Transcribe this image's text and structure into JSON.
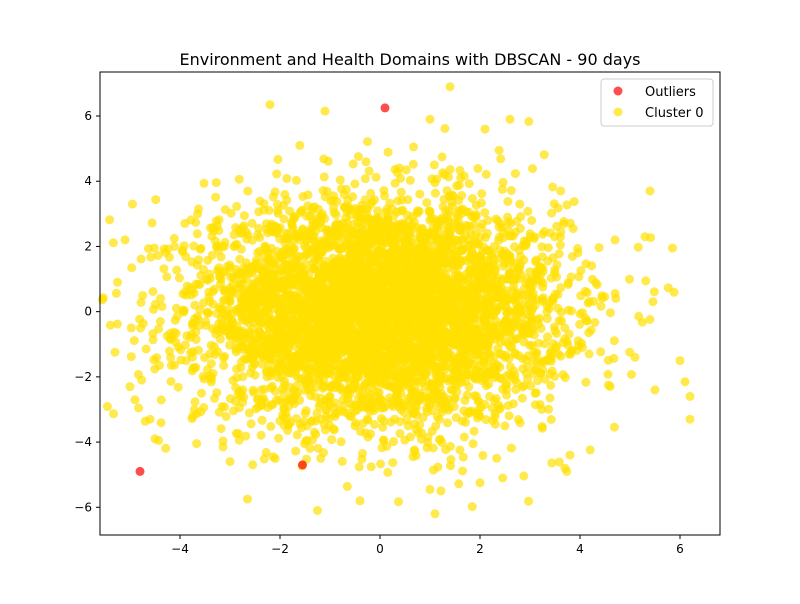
{
  "chart_data": {
    "type": "scatter",
    "title": "Environment and Health Domains with DBSCAN - 90 days",
    "xlabel": "",
    "ylabel": "",
    "xlim": [
      -5.6,
      6.8
    ],
    "ylim": [
      -6.85,
      7.35
    ],
    "x_ticks": [
      -4,
      -2,
      0,
      2,
      4,
      6
    ],
    "y_ticks": [
      -6,
      -4,
      -2,
      0,
      2,
      4,
      6
    ],
    "grid": false,
    "legend_position": "top-right",
    "series": [
      {
        "name": "Outliers",
        "color": "#ff0000",
        "points": [
          [
            0.1,
            6.25
          ],
          [
            -4.8,
            -4.9
          ],
          [
            -1.55,
            -4.7
          ]
        ]
      },
      {
        "name": "Cluster 0",
        "color": "#ffe000",
        "point_count": 5000,
        "center": [
          0.0,
          0.0
        ],
        "spread": [
          1.8,
          1.7
        ],
        "extreme_points": [
          [
            -2.2,
            6.35
          ],
          [
            1.4,
            6.9
          ],
          [
            -1.1,
            6.15
          ],
          [
            1.0,
            5.9
          ],
          [
            2.1,
            5.6
          ],
          [
            2.6,
            5.9
          ],
          [
            -5.25,
            0.9
          ],
          [
            -5.1,
            2.2
          ],
          [
            -4.95,
            3.3
          ],
          [
            -5.0,
            -2.3
          ],
          [
            -4.9,
            -2.7
          ],
          [
            -4.6,
            -3.3
          ],
          [
            -2.65,
            -5.75
          ],
          [
            -1.25,
            -6.1
          ],
          [
            1.1,
            -6.2
          ],
          [
            1.0,
            -5.45
          ],
          [
            -0.4,
            -5.8
          ],
          [
            2.0,
            -5.25
          ],
          [
            5.85,
            1.95
          ],
          [
            6.0,
            -1.5
          ],
          [
            6.1,
            -2.15
          ],
          [
            6.2,
            -2.6
          ],
          [
            6.2,
            -3.3
          ],
          [
            5.1,
            -1.4
          ],
          [
            5.5,
            -2.4
          ],
          [
            5.4,
            3.7
          ],
          [
            5.3,
            2.3
          ],
          [
            4.7,
            2.2
          ],
          [
            3.7,
            -4.8
          ],
          [
            3.8,
            -4.4
          ],
          [
            -3.0,
            -4.6
          ],
          [
            -4.5,
            -3.9
          ]
        ]
      }
    ]
  }
}
